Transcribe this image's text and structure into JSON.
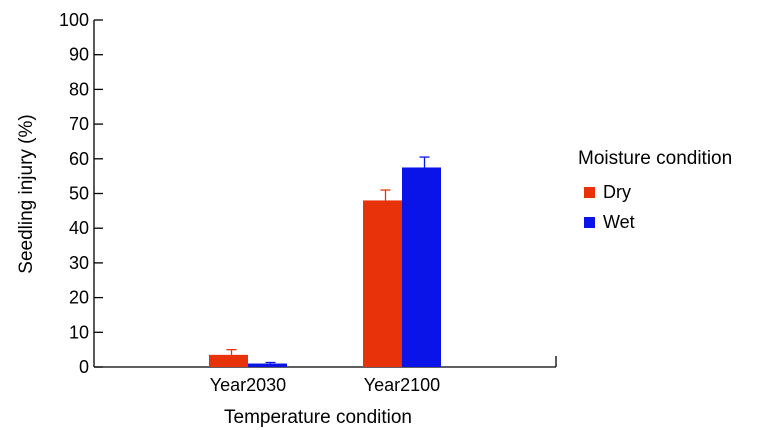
{
  "chart_data": {
    "type": "bar",
    "title": "",
    "xlabel": "Temperature condition",
    "ylabel": "Seedling injury (%)",
    "ylim": [
      0,
      100
    ],
    "yticks": [
      0,
      10,
      20,
      30,
      40,
      50,
      60,
      70,
      80,
      90,
      100
    ],
    "categories": [
      "Year2030",
      "Year2100"
    ],
    "series": [
      {
        "name": "Dry",
        "color": "#e8320a",
        "values": [
          3.5,
          48
        ],
        "errors": [
          1.5,
          3
        ]
      },
      {
        "name": "Wet",
        "color": "#0a14e8",
        "values": [
          1,
          57.5
        ],
        "errors": [
          0.3,
          3
        ]
      }
    ],
    "legend": {
      "title": "Moisture condition",
      "position": "right"
    },
    "grid": false
  }
}
